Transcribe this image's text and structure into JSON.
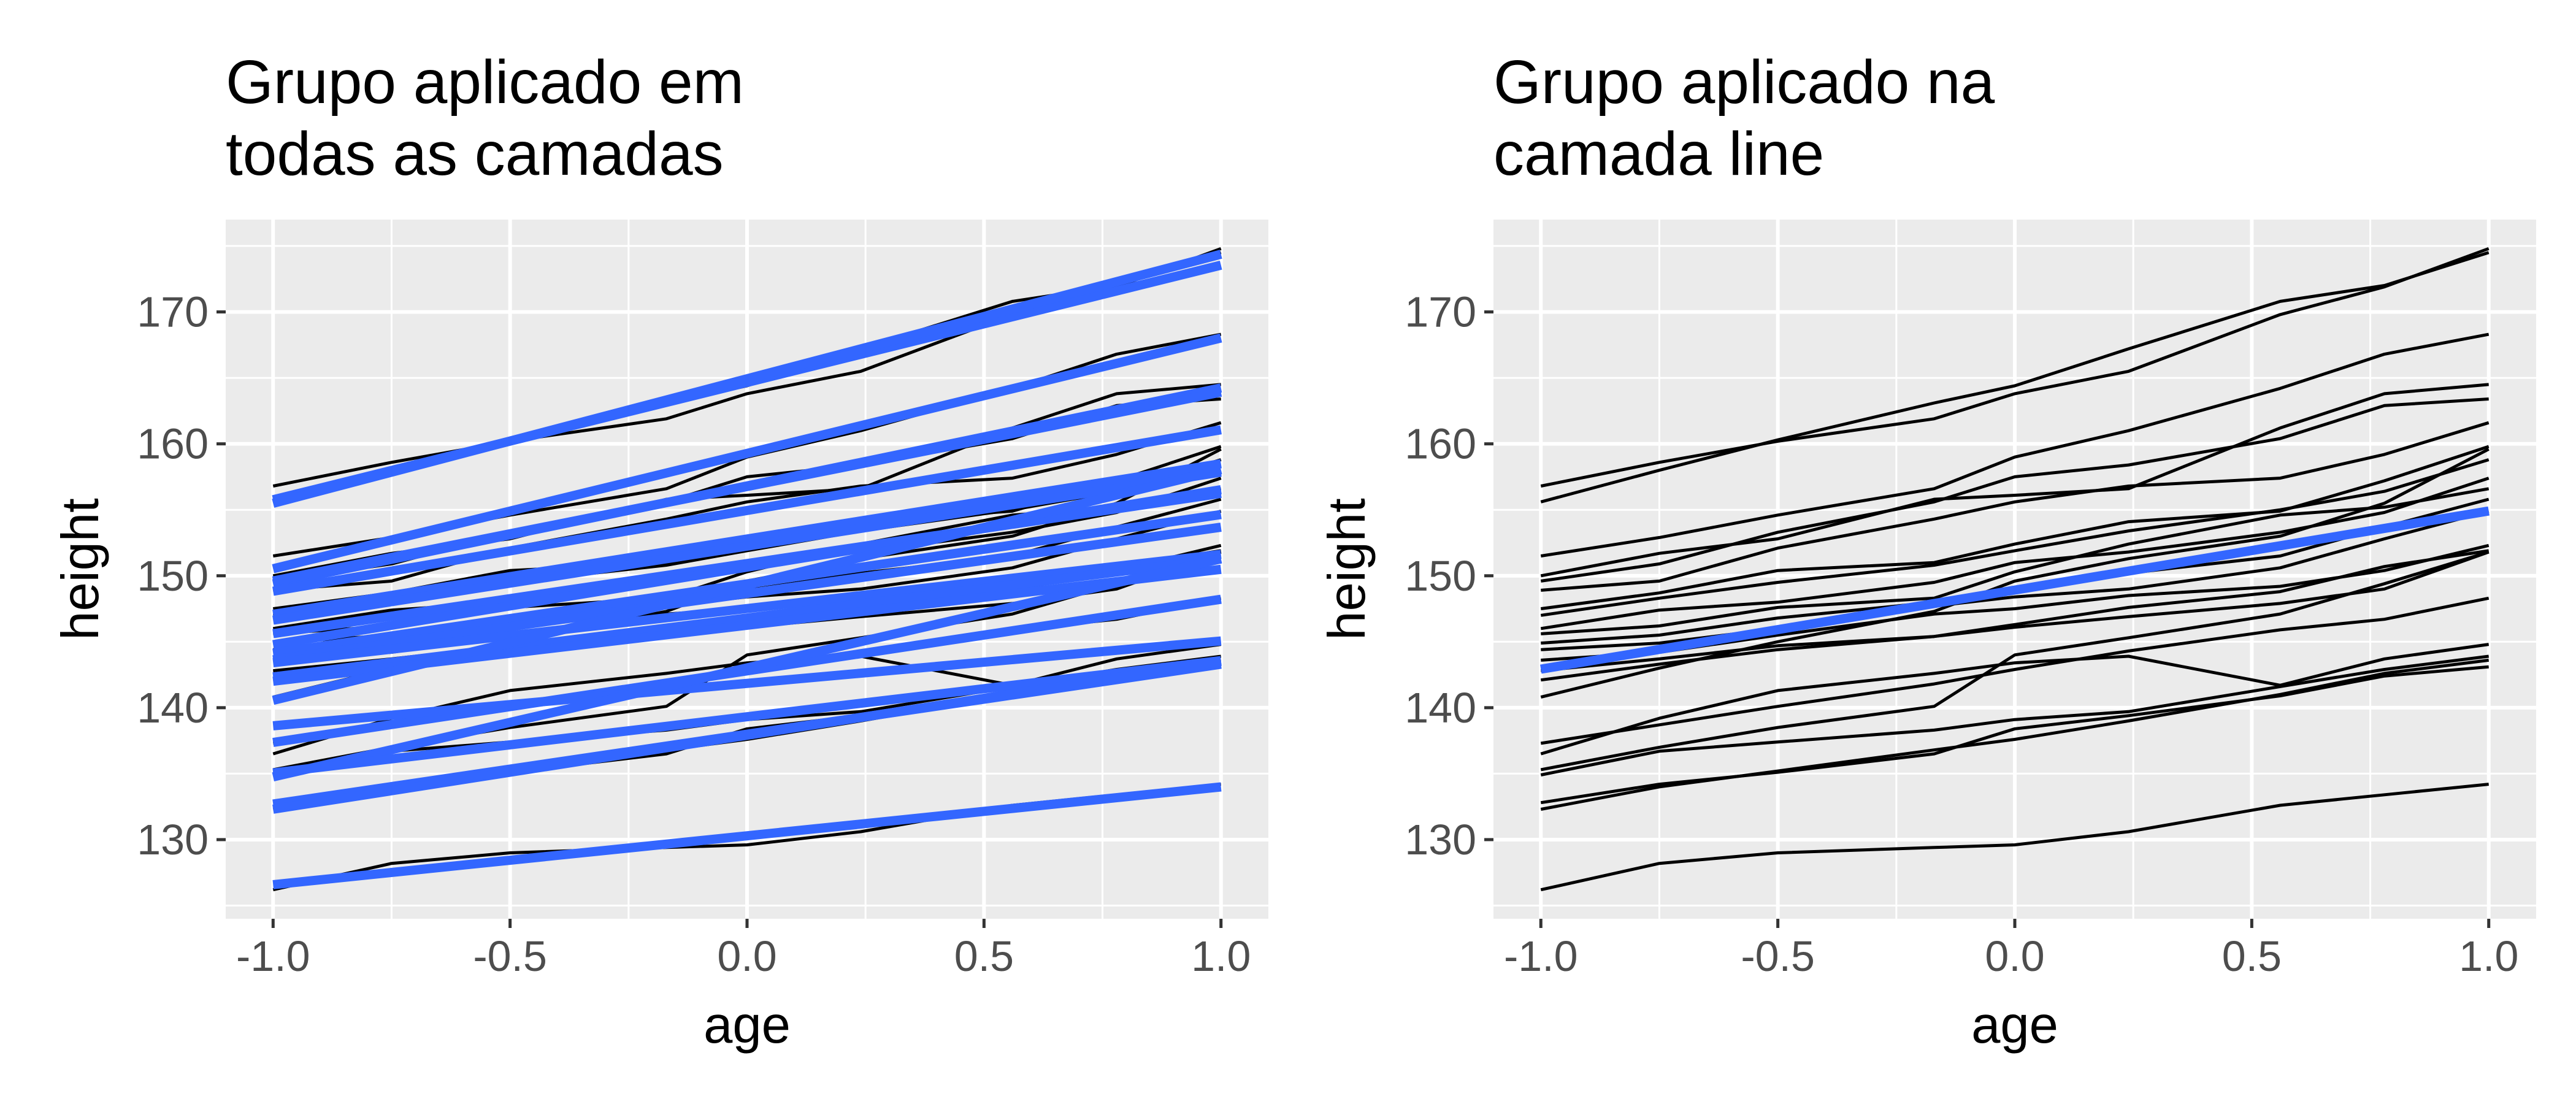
{
  "chart_data": [
    {
      "type": "line",
      "title": [
        "Grupo aplicado em",
        "todas as camadas"
      ],
      "xlabel": "age",
      "ylabel": "height",
      "xlim": [
        -1.1,
        1.1
      ],
      "ylim": [
        124,
        177
      ],
      "x_ticks": [
        -1.0,
        -0.5,
        0.0,
        0.5,
        1.0
      ],
      "x_tick_labels": [
        "-1.0",
        "-0.5",
        "0.0",
        "0.5",
        "1.0"
      ],
      "y_ticks": [
        130,
        140,
        150,
        160,
        170
      ],
      "y_tick_labels": [
        "130",
        "140",
        "150",
        "160",
        "170"
      ],
      "grid": true,
      "smooth": "per group",
      "group_color": "#000000",
      "smooth_color": "#3366FF"
    },
    {
      "type": "line",
      "title": [
        "Grupo aplicado na",
        "camada line"
      ],
      "xlabel": "age",
      "ylabel": "height",
      "xlim": [
        -1.1,
        1.1
      ],
      "ylim": [
        124,
        177
      ],
      "x_ticks": [
        -1.0,
        -0.5,
        0.0,
        0.5,
        1.0
      ],
      "x_tick_labels": [
        "-1.0",
        "-0.5",
        "0.0",
        "0.5",
        "1.0"
      ],
      "y_ticks": [
        130,
        140,
        150,
        160,
        170
      ],
      "y_tick_labels": [
        "130",
        "140",
        "150",
        "160",
        "170"
      ],
      "grid": true,
      "smooth": "overall",
      "group_color": "#000000",
      "smooth_color": "#3366FF"
    }
  ],
  "groups": [
    {
      "x": [
        -1.0,
        -0.75,
        -0.5,
        -0.17,
        0.0,
        0.24,
        0.56,
        0.78,
        1.0
      ],
      "y": [
        156.8,
        158.6,
        160.2,
        161.9,
        163.8,
        165.5,
        169.8,
        171.9,
        174.8
      ]
    },
    {
      "x": [
        -1.0,
        -0.75,
        -0.5,
        -0.17,
        0.0,
        0.24,
        0.56,
        0.78,
        1.0
      ],
      "y": [
        155.6,
        158.0,
        160.3,
        163.1,
        164.4,
        167.2,
        170.8,
        172.0,
        174.5
      ]
    },
    {
      "x": [
        -1.0,
        -0.75,
        -0.5,
        -0.17,
        0.0,
        0.24,
        0.56,
        0.78,
        1.0
      ],
      "y": [
        151.5,
        152.9,
        154.6,
        156.6,
        159.0,
        161.0,
        164.2,
        166.8,
        168.3
      ]
    },
    {
      "x": [
        -1.0,
        -0.75,
        -0.5,
        -0.17,
        0.0,
        0.24,
        0.56,
        0.78,
        1.0
      ],
      "y": [
        150.0,
        151.7,
        152.8,
        155.8,
        156.1,
        156.6,
        161.2,
        163.8,
        164.5
      ]
    },
    {
      "x": [
        -1.0,
        -0.75,
        -0.5,
        -0.17,
        0.0,
        0.24,
        0.56,
        0.78,
        1.0
      ],
      "y": [
        149.6,
        150.9,
        153.3,
        155.6,
        157.5,
        158.4,
        160.4,
        162.9,
        163.4
      ]
    },
    {
      "x": [
        -1.0,
        -0.75,
        -0.5,
        -0.17,
        0.0,
        0.24,
        0.56,
        0.78,
        1.0
      ],
      "y": [
        148.9,
        149.6,
        152.1,
        154.3,
        155.6,
        156.8,
        157.4,
        159.2,
        161.6
      ]
    },
    {
      "x": [
        -1.0,
        -0.75,
        -0.5,
        -0.17,
        0.0,
        0.24,
        0.56,
        0.78,
        1.0
      ],
      "y": [
        147.5,
        148.7,
        150.4,
        151.0,
        152.4,
        154.1,
        154.9,
        157.2,
        159.8
      ]
    },
    {
      "x": [
        -1.0,
        -0.75,
        -0.5,
        -0.17,
        0.0,
        0.24,
        0.56,
        0.78,
        1.0
      ],
      "y": [
        147.0,
        148.3,
        149.5,
        150.8,
        151.9,
        153.4,
        155.0,
        156.4,
        158.8
      ]
    },
    {
      "x": [
        -1.0,
        -0.75,
        -0.5,
        -0.17,
        0.0,
        0.24,
        0.56,
        0.78,
        1.0
      ],
      "y": [
        146.0,
        147.4,
        148.0,
        149.5,
        151.0,
        151.8,
        153.3,
        154.8,
        157.4
      ]
    },
    {
      "x": [
        -1.0,
        -0.75,
        -0.5,
        -0.17,
        0.0,
        0.24,
        0.56,
        0.78,
        1.0
      ],
      "y": [
        145.6,
        146.2,
        147.6,
        148.3,
        150.3,
        152.4,
        154.6,
        155.2,
        156.6
      ]
    },
    {
      "x": [
        -1.0,
        -0.75,
        -0.5,
        -0.17,
        0.0,
        0.24,
        0.56,
        0.78,
        1.0
      ],
      "y": [
        144.9,
        145.5,
        146.8,
        148.0,
        148.9,
        150.2,
        151.5,
        153.7,
        155.8
      ]
    },
    {
      "x": [
        -1.0,
        -0.75,
        -0.5,
        -0.17,
        0.0,
        0.24,
        0.56,
        0.78,
        1.0
      ],
      "y": [
        144.4,
        144.9,
        146.0,
        147.7,
        148.4,
        149.0,
        150.6,
        152.8,
        154.9
      ]
    },
    {
      "x": [
        -1.0,
        -0.75,
        -0.5,
        -0.17,
        0.0,
        0.24,
        0.56,
        0.78,
        1.0
      ],
      "y": [
        143.6,
        144.2,
        145.5,
        147.1,
        147.5,
        148.5,
        149.2,
        150.4,
        152.3
      ]
    },
    {
      "x": [
        -1.0,
        -0.75,
        -0.5,
        -0.17,
        0.0,
        0.24,
        0.56,
        0.78,
        1.0
      ],
      "y": [
        142.8,
        143.7,
        144.7,
        145.4,
        146.3,
        147.6,
        148.8,
        150.7,
        151.9
      ]
    },
    {
      "x": [
        -1.0,
        -0.75,
        -0.5,
        -0.17,
        0.0,
        0.24,
        0.56,
        0.78,
        1.0
      ],
      "y": [
        142.1,
        143.3,
        144.4,
        145.4,
        146.1,
        146.9,
        147.9,
        149.0,
        151.8
      ]
    },
    {
      "x": [
        -1.0,
        -0.75,
        -0.5,
        -0.17,
        0.0,
        0.24,
        0.56,
        0.78,
        1.0
      ],
      "y": [
        140.8,
        143.0,
        145.0,
        147.3,
        149.6,
        151.3,
        153.0,
        155.5,
        159.6
      ]
    },
    {
      "x": [
        -1.0,
        -0.75,
        -0.5,
        -0.17,
        0.0,
        0.24,
        0.56,
        0.78,
        1.0
      ],
      "y": [
        137.3,
        138.7,
        140.1,
        141.8,
        142.9,
        144.3,
        145.9,
        146.7,
        148.3
      ]
    },
    {
      "x": [
        -1.0,
        -0.75,
        -0.5,
        -0.17,
        0.0,
        0.24,
        0.56,
        0.78,
        1.0
      ],
      "y": [
        136.5,
        139.2,
        141.3,
        142.6,
        143.4,
        143.9,
        141.7,
        143.7,
        144.8
      ]
    },
    {
      "x": [
        -1.0,
        -0.75,
        -0.5,
        -0.17,
        0.0,
        0.24,
        0.56,
        0.78,
        1.0
      ],
      "y": [
        135.3,
        137.0,
        138.5,
        140.1,
        144.0,
        145.3,
        147.1,
        149.4,
        151.8
      ]
    },
    {
      "x": [
        -1.0,
        -0.75,
        -0.5,
        -0.17,
        0.0,
        0.24,
        0.56,
        0.78,
        1.0
      ],
      "y": [
        134.9,
        136.7,
        137.4,
        138.3,
        139.1,
        139.7,
        141.6,
        142.9,
        143.9
      ]
    },
    {
      "x": [
        -1.0,
        -0.75,
        -0.5,
        -0.17,
        0.0,
        0.24,
        0.56,
        0.78,
        1.0
      ],
      "y": [
        132.8,
        134.2,
        135.1,
        136.5,
        138.4,
        139.4,
        140.9,
        142.4,
        143.1
      ]
    },
    {
      "x": [
        -1.0,
        -0.75,
        -0.5,
        -0.17,
        0.0,
        0.24,
        0.56,
        0.78,
        1.0
      ],
      "y": [
        132.3,
        134.0,
        135.2,
        136.8,
        137.6,
        139.0,
        141.0,
        142.6,
        143.6
      ]
    },
    {
      "x": [
        -1.0,
        -0.75,
        -0.5,
        -0.17,
        0.0,
        0.24,
        0.56,
        0.78,
        1.0
      ],
      "y": [
        126.2,
        128.2,
        129.0,
        129.4,
        129.6,
        130.6,
        132.6,
        133.4,
        134.2
      ]
    }
  ]
}
